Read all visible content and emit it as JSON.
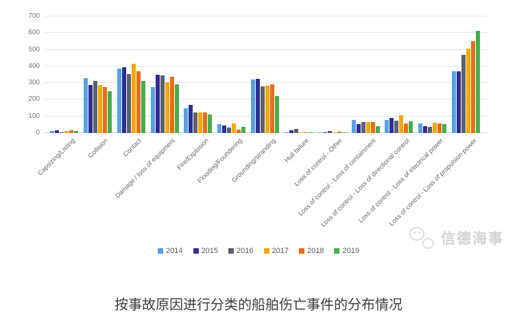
{
  "chart_data": {
    "type": "bar",
    "title": "",
    "xlabel": "",
    "ylabel": "",
    "ylim": [
      0,
      700
    ],
    "yticks": [
      0,
      100,
      200,
      300,
      400,
      500,
      600,
      700
    ],
    "grid": true,
    "legend_position": "bottom",
    "categories": [
      "Capsizing/Listing",
      "Collision",
      "Contact",
      "Damage / loss of equipment",
      "Fire/Explosion",
      "Flooding/Foundering",
      "Grounding/stranding",
      "Hull failure",
      "Loss of control - Other",
      "Loss of control - Loss of containment",
      "Loss of control - Loss of directional control",
      "Loss of control - Loss of electrical power",
      "Loss of control - Loss of propulsion power"
    ],
    "series": [
      {
        "name": "2014",
        "color": "#57a1e4",
        "values": [
          11,
          328,
          386,
          278,
          149,
          52,
          320,
          5,
          4,
          78,
          78,
          58,
          370
        ]
      },
      {
        "name": "2015",
        "color": "#2f2d91",
        "values": [
          15,
          290,
          397,
          352,
          168,
          46,
          325,
          16,
          4,
          55,
          90,
          40,
          372
        ]
      },
      {
        "name": "2016",
        "color": "#59626c",
        "values": [
          6,
          313,
          356,
          344,
          123,
          35,
          282,
          23,
          14,
          65,
          75,
          38,
          468
        ]
      },
      {
        "name": "2017",
        "color": "#f5a70a",
        "values": [
          13,
          287,
          418,
          305,
          125,
          56,
          286,
          6,
          6,
          66,
          107,
          62,
          505
        ]
      },
      {
        "name": "2018",
        "color": "#e56e17",
        "values": [
          15,
          276,
          372,
          336,
          125,
          21,
          291,
          4,
          8,
          64,
          58,
          56,
          550
        ]
      },
      {
        "name": "2019",
        "color": "#47ad4d",
        "values": [
          13,
          251,
          314,
          294,
          111,
          38,
          223,
          4,
          3,
          40,
          70,
          52,
          615
        ]
      }
    ]
  },
  "watermark": {
    "text": "信德海事"
  },
  "caption": {
    "text": "按事故原因进行分类的船舶伤亡事件的分布情况"
  }
}
